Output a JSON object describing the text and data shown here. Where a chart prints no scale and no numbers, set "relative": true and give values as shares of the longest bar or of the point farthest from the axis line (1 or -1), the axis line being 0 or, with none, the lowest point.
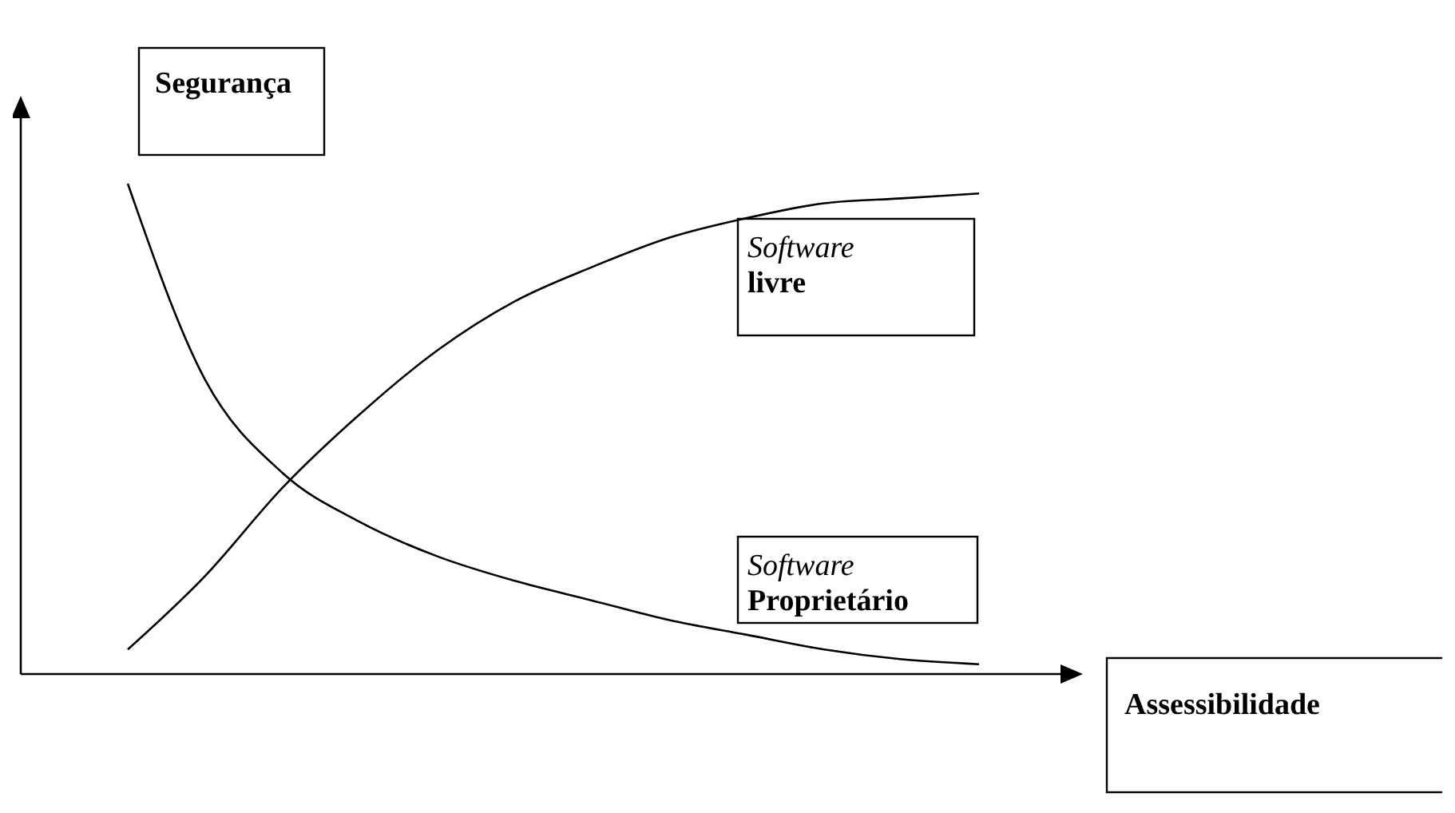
{
  "chart_data": {
    "type": "line",
    "relative": true,
    "xlabel": "Assessibilidade",
    "ylabel": "Segurança",
    "categories": [
      null,
      null,
      null,
      null,
      null,
      null,
      null,
      null,
      null,
      null,
      null,
      null
    ],
    "series": [
      {
        "name": "Software livre",
        "color": "#000000",
        "values": [
          0.05,
          0.2,
          0.38,
          0.53,
          0.66,
          0.76,
          0.83,
          0.89,
          0.93,
          0.96,
          0.97,
          0.98
        ]
      },
      {
        "name": "Software Proprietário",
        "color": "#000000",
        "values": [
          1,
          0.6,
          0.41,
          0.31,
          0.24,
          0.19,
          0.15,
          0.11,
          0.08,
          0.05,
          0.03,
          0.02
        ]
      }
    ]
  }
}
